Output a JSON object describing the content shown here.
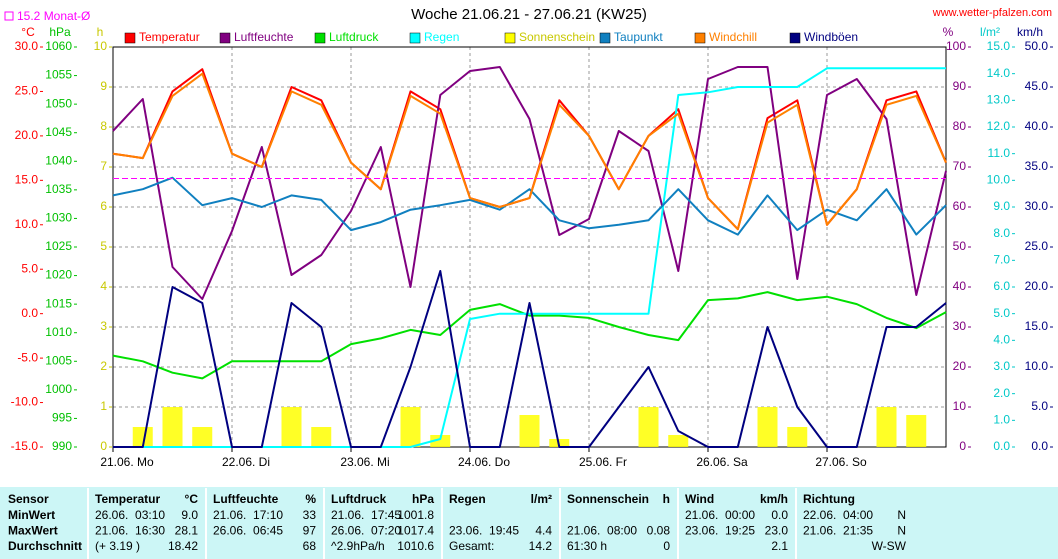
{
  "chart_data": {
    "type": "line",
    "title": "Woche 21.06.21 - 27.06.21 (KW25)",
    "source": "www.wetter-pfalzen.com",
    "average": {
      "label": "15.2 Monat-Ø",
      "value": 15.2,
      "color": "#ff00ff",
      "axis": "temp"
    },
    "x": [
      0,
      6,
      12,
      18,
      24,
      30,
      36,
      42,
      48,
      54,
      60,
      66,
      72,
      78,
      84,
      90,
      96,
      102,
      108,
      114,
      120,
      126,
      132,
      138,
      144,
      150,
      156,
      162,
      168
    ],
    "xlim": [
      0,
      168
    ],
    "xticks": [
      {
        "value": 0,
        "label": "21.06. Mo"
      },
      {
        "value": 24,
        "label": "22.06. Di"
      },
      {
        "value": 48,
        "label": "23.06. Mi"
      },
      {
        "value": 72,
        "label": "24.06. Do"
      },
      {
        "value": 96,
        "label": "25.06. Fr"
      },
      {
        "value": 120,
        "label": "26.06. Sa"
      },
      {
        "value": 144,
        "label": "27.06. So"
      }
    ],
    "grid": true,
    "axes": {
      "temp": {
        "label": "°C",
        "color": "#ff0000",
        "lim": [
          -15,
          30
        ],
        "ticks": [
          {
            "value": -15,
            "label": "-15.0"
          },
          {
            "value": -10,
            "label": "-10.0"
          },
          {
            "value": -5,
            "label": "-5.0"
          },
          {
            "value": 0,
            "label": "0.0"
          },
          {
            "value": 5,
            "label": "5.0"
          },
          {
            "value": 10,
            "label": "10.0"
          },
          {
            "value": 15,
            "label": "15.0"
          },
          {
            "value": 20,
            "label": "20.0"
          },
          {
            "value": 25,
            "label": "25.0"
          },
          {
            "value": 30,
            "label": "30.0"
          }
        ]
      },
      "hpa": {
        "label": "hPa",
        "color": "#00c000",
        "lim": [
          990,
          1060
        ],
        "ticks": [
          990,
          995,
          1000,
          1005,
          1010,
          1015,
          1020,
          1025,
          1030,
          1035,
          1040,
          1045,
          1050,
          1055,
          1060
        ]
      },
      "sun": {
        "label": "h",
        "color": "#c8c800",
        "lim": [
          0,
          10
        ],
        "ticks": [
          0,
          1,
          2,
          3,
          4,
          5,
          6,
          7,
          8,
          9,
          10
        ]
      },
      "hum": {
        "label": "%",
        "color": "#800080",
        "lim": [
          0,
          100
        ],
        "ticks": [
          0,
          10,
          20,
          30,
          40,
          50,
          60,
          70,
          80,
          90,
          100
        ]
      },
      "rain": {
        "label": "l/m²",
        "color": "#00c8c8",
        "lim": [
          0,
          15
        ],
        "ticks": [
          {
            "value": 0,
            "label": "0.0"
          },
          {
            "value": 1,
            "label": "1.0"
          },
          {
            "value": 2,
            "label": "2.0"
          },
          {
            "value": 3,
            "label": "3.0"
          },
          {
            "value": 4,
            "label": "4.0"
          },
          {
            "value": 5,
            "label": "5.0"
          },
          {
            "value": 6,
            "label": "6.0"
          },
          {
            "value": 7,
            "label": "7.0"
          },
          {
            "value": 8,
            "label": "8.0"
          },
          {
            "value": 9,
            "label": "9.0"
          },
          {
            "value": 10,
            "label": "10.0"
          },
          {
            "value": 11,
            "label": "11.0"
          },
          {
            "value": 12,
            "label": "12.0"
          },
          {
            "value": 13,
            "label": "13.0"
          },
          {
            "value": 14,
            "label": "14.0"
          },
          {
            "value": 15,
            "label": "15.0"
          }
        ]
      },
      "wind": {
        "label": "km/h",
        "color": "#000080",
        "lim": [
          0,
          50
        ],
        "ticks": [
          {
            "value": 0,
            "label": "0.0"
          },
          {
            "value": 5,
            "label": "5.0"
          },
          {
            "value": 10,
            "label": "10.0"
          },
          {
            "value": 15,
            "label": "15.0"
          },
          {
            "value": 20,
            "label": "20.0"
          },
          {
            "value": 25,
            "label": "25.0"
          },
          {
            "value": 30,
            "label": "30.0"
          },
          {
            "value": 35,
            "label": "35.0"
          },
          {
            "value": 40,
            "label": "40.0"
          },
          {
            "value": 45,
            "label": "45.0"
          },
          {
            "value": 50,
            "label": "50.0"
          }
        ]
      }
    },
    "series": [
      {
        "name": "Temperatur",
        "color": "#ff0000",
        "axis": "temp",
        "kind": "line",
        "values": [
          18,
          17.5,
          25,
          27.5,
          18,
          16.5,
          25.5,
          24,
          17,
          14,
          25,
          23,
          13,
          12,
          13,
          24,
          20,
          14,
          20,
          23,
          13,
          9.5,
          22,
          24,
          10,
          14,
          24,
          25,
          17
        ]
      },
      {
        "name": "Luftfeuchte",
        "color": "#800080",
        "axis": "hum",
        "kind": "line",
        "values": [
          79,
          87,
          45,
          37,
          54,
          75,
          43,
          48,
          59,
          75,
          40,
          88,
          94,
          95,
          82,
          53,
          57,
          79,
          74,
          44,
          92,
          95,
          95,
          42,
          88,
          92,
          82,
          38,
          69
        ]
      },
      {
        "name": "Luftdruck",
        "color": "#00e000",
        "axis": "hpa",
        "kind": "line",
        "values": [
          1006,
          1005,
          1003,
          1002,
          1005,
          1005,
          1005,
          1005,
          1008,
          1009,
          1010.5,
          1009.6,
          1014,
          1015,
          1013,
          1013,
          1012.6,
          1011,
          1009.6,
          1008.7,
          1015.7,
          1016,
          1017.1,
          1015.7,
          1016.3,
          1015,
          1012.6,
          1010.8,
          1013.6
        ]
      },
      {
        "name": "Regen",
        "color": "#00ffff",
        "axis": "rain",
        "kind": "line",
        "values": [
          0,
          0,
          0,
          0,
          0,
          0,
          0,
          0,
          0,
          0,
          0,
          0.3,
          4.8,
          5.0,
          5.0,
          5.0,
          5.0,
          5.0,
          5.0,
          13.2,
          13.3,
          13.5,
          13.5,
          13.5,
          14.2,
          14.2,
          14.2,
          14.2,
          14.2
        ]
      },
      {
        "name": "Sonnenschein",
        "color": "#ffff00",
        "axis": "sun",
        "kind": "bar",
        "values": [
          0,
          0.5,
          1,
          0.5,
          0,
          0,
          1,
          0.5,
          0,
          0,
          1,
          0.3,
          0,
          0,
          0.8,
          0.2,
          0,
          0,
          1,
          0.3,
          0,
          0,
          1,
          0.5,
          0,
          0,
          1,
          0.8,
          0
        ]
      },
      {
        "name": "Taupunkt",
        "color": "#1080c0",
        "axis": "temp",
        "kind": "line",
        "values": [
          13.3,
          14,
          15.3,
          12.2,
          13,
          12,
          13.3,
          12.8,
          9.4,
          10.3,
          11.7,
          12.2,
          12.8,
          11.7,
          14,
          10.5,
          9.6,
          10,
          10.5,
          14,
          10.5,
          8.9,
          13.3,
          9.4,
          11.7,
          10.5,
          14,
          8.9,
          12.2
        ]
      },
      {
        "name": "Windchill",
        "color": "#ff8000",
        "axis": "temp",
        "kind": "line",
        "values": [
          18,
          17.5,
          24.5,
          27,
          18,
          16.5,
          25,
          23.5,
          17,
          14,
          24.5,
          22.5,
          13,
          12,
          13,
          23.5,
          20,
          14,
          20,
          22.5,
          13,
          9.5,
          21.5,
          23.5,
          10,
          14,
          23.5,
          24.5,
          17
        ]
      },
      {
        "name": "Windböen",
        "color": "#000080",
        "axis": "wind",
        "kind": "line",
        "values": [
          0,
          0,
          20,
          18,
          0,
          0,
          18,
          15,
          0,
          0,
          10,
          22,
          0,
          0,
          18,
          0,
          0,
          5,
          10,
          2,
          0,
          0,
          15,
          5,
          0,
          0,
          15,
          15,
          18
        ]
      }
    ]
  },
  "table": {
    "header": [
      {
        "name": "Sensor"
      },
      {
        "name": "Temperatur",
        "unit": "°C"
      },
      {
        "name": "Luftfeuchte",
        "unit": "%"
      },
      {
        "name": "Luftdruck",
        "unit": "hPa"
      },
      {
        "name": "Regen",
        "unit": "l/m²"
      },
      {
        "name": "Sonnenschein",
        "unit": "h"
      },
      {
        "name": "Wind",
        "unit": "km/h"
      },
      {
        "name": "Richtung"
      }
    ],
    "rows": [
      {
        "label": "MinWert",
        "cells": [
          [
            "26.06.  03:10",
            "9.0"
          ],
          [
            "21.06.  17:10",
            "33"
          ],
          [
            "21.06.  17:45",
            "1001.8"
          ],
          [
            null,
            null
          ],
          [
            null,
            null
          ],
          [
            "21.06.  00:00",
            "0.0"
          ],
          [
            "22.06.  04:00",
            "N"
          ]
        ]
      },
      {
        "label": "MaxWert",
        "cells": [
          [
            "21.06.  16:30",
            "28.1"
          ],
          [
            "26.06.  06:45",
            "97"
          ],
          [
            "26.06.  07:20",
            "1017.4"
          ],
          [
            "23.06.  19:45",
            "4.4"
          ],
          [
            "21.06.  08:00",
            "0.08"
          ],
          [
            "23.06.  19:25",
            "23.0"
          ],
          [
            "21.06.  21:35",
            "N"
          ]
        ]
      },
      {
        "label": "Durchschnitt",
        "cells": [
          [
            "(+ 3.19 )",
            "18.42"
          ],
          [
            null,
            "68"
          ],
          [
            "^2.9hPa/h",
            "1010.6"
          ],
          [
            "Gesamt:",
            "14.2"
          ],
          [
            "61:30 h",
            "0"
          ],
          [
            null,
            "2.1"
          ],
          [
            null,
            "W-SW"
          ]
        ]
      }
    ]
  }
}
